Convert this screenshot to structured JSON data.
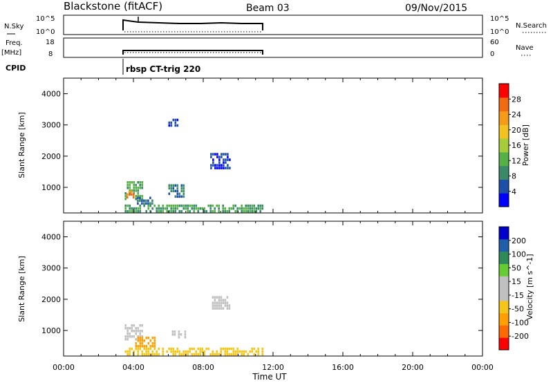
{
  "header": {
    "station": "Blackstone (fitACF)",
    "beam": "Beam 03",
    "date": "09/Nov/2015"
  },
  "top_panels": {
    "nsky_label": "N.Sky",
    "nsky_ticks": [
      "10^5",
      "10^0"
    ],
    "nsearch_ticks": [
      "10^5",
      "10^0"
    ],
    "nsearch_label": "N.Search",
    "freq_label_line1": "Freq.",
    "freq_label_line2": "[MHz]",
    "freq_ticks": [
      "18",
      "8"
    ],
    "nave_ticks": [
      "60",
      "0"
    ],
    "nave_label": "Nave",
    "cpid_label": "CPID",
    "cpid_value": "rbsp CT-trig 220"
  },
  "colors": {
    "power_scale": [
      "#0000ff",
      "#1e4fa8",
      "#3a8a6a",
      "#55b045",
      "#a6cc3a",
      "#f2c21f",
      "#f59b17",
      "#f06a12",
      "#ff0000"
    ],
    "velocity_scale": [
      "#ff0000",
      "#ff6a00",
      "#ff9f00",
      "#f5c518",
      "#c0c0c0",
      "#c0c0c0",
      "#66cc33",
      "#2e8b57",
      "#1f5fa8",
      "#0000cc"
    ],
    "axis": "#000000"
  },
  "chart_data": [
    {
      "type": "heatmap",
      "title": "",
      "xlabel": "",
      "ylabel": "Slant Range [km]",
      "xlim": [
        0,
        24
      ],
      "ylim": [
        180,
        4500
      ],
      "yticks": [
        "1000",
        "2000",
        "3000",
        "4000"
      ],
      "colorbar_label": "Power [dB]",
      "colorbar_ticks": [
        "4",
        "8",
        "12",
        "16",
        "20",
        "24",
        "28"
      ],
      "data_window_ut": [
        3.5,
        11.5
      ],
      "regions": [
        {
          "x": [
            3.5,
            4.6
          ],
          "y": [
            550,
            1200
          ],
          "value": 12
        },
        {
          "x": [
            3.6,
            4.1
          ],
          "y": [
            600,
            900
          ],
          "value": 28
        },
        {
          "x": [
            4.2,
            5.2
          ],
          "y": [
            450,
            700
          ],
          "value": 6
        },
        {
          "x": [
            6.0,
            7.0
          ],
          "y": [
            700,
            1100
          ],
          "value": 8
        },
        {
          "x": [
            8.4,
            9.6
          ],
          "y": [
            1600,
            2100
          ],
          "value": 4
        },
        {
          "x": [
            6.0,
            6.6
          ],
          "y": [
            2900,
            3200
          ],
          "value": 4
        },
        {
          "x": [
            3.5,
            11.5
          ],
          "y": [
            180,
            450
          ],
          "value": 10
        }
      ]
    },
    {
      "type": "heatmap",
      "title": "",
      "xlabel": "Time UT",
      "ylabel": "Slant Range [km]",
      "xlim": [
        0,
        24
      ],
      "ylim": [
        180,
        4500
      ],
      "xticks": [
        "00:00",
        "04:00",
        "08:00",
        "12:00",
        "16:00",
        "20:00",
        "00:00"
      ],
      "yticks": [
        "1000",
        "2000",
        "3000",
        "4000"
      ],
      "colorbar_label": "Velocity [m s^-1]",
      "colorbar_ticks": [
        "200",
        "100",
        "50",
        "15",
        "-15",
        "-50",
        "-100",
        "-200"
      ],
      "data_window_ut": [
        3.5,
        11.5
      ],
      "regions": [
        {
          "x": [
            3.5,
            4.6
          ],
          "y": [
            700,
            1200
          ],
          "value": 0
        },
        {
          "x": [
            4.1,
            5.3
          ],
          "y": [
            450,
            800
          ],
          "value": -60
        },
        {
          "x": [
            6.2,
            7.0
          ],
          "y": [
            700,
            1000
          ],
          "value": 0
        },
        {
          "x": [
            8.5,
            9.6
          ],
          "y": [
            1650,
            2100
          ],
          "value": 0
        },
        {
          "x": [
            3.5,
            11.5
          ],
          "y": [
            180,
            450
          ],
          "value": -40
        }
      ]
    }
  ]
}
